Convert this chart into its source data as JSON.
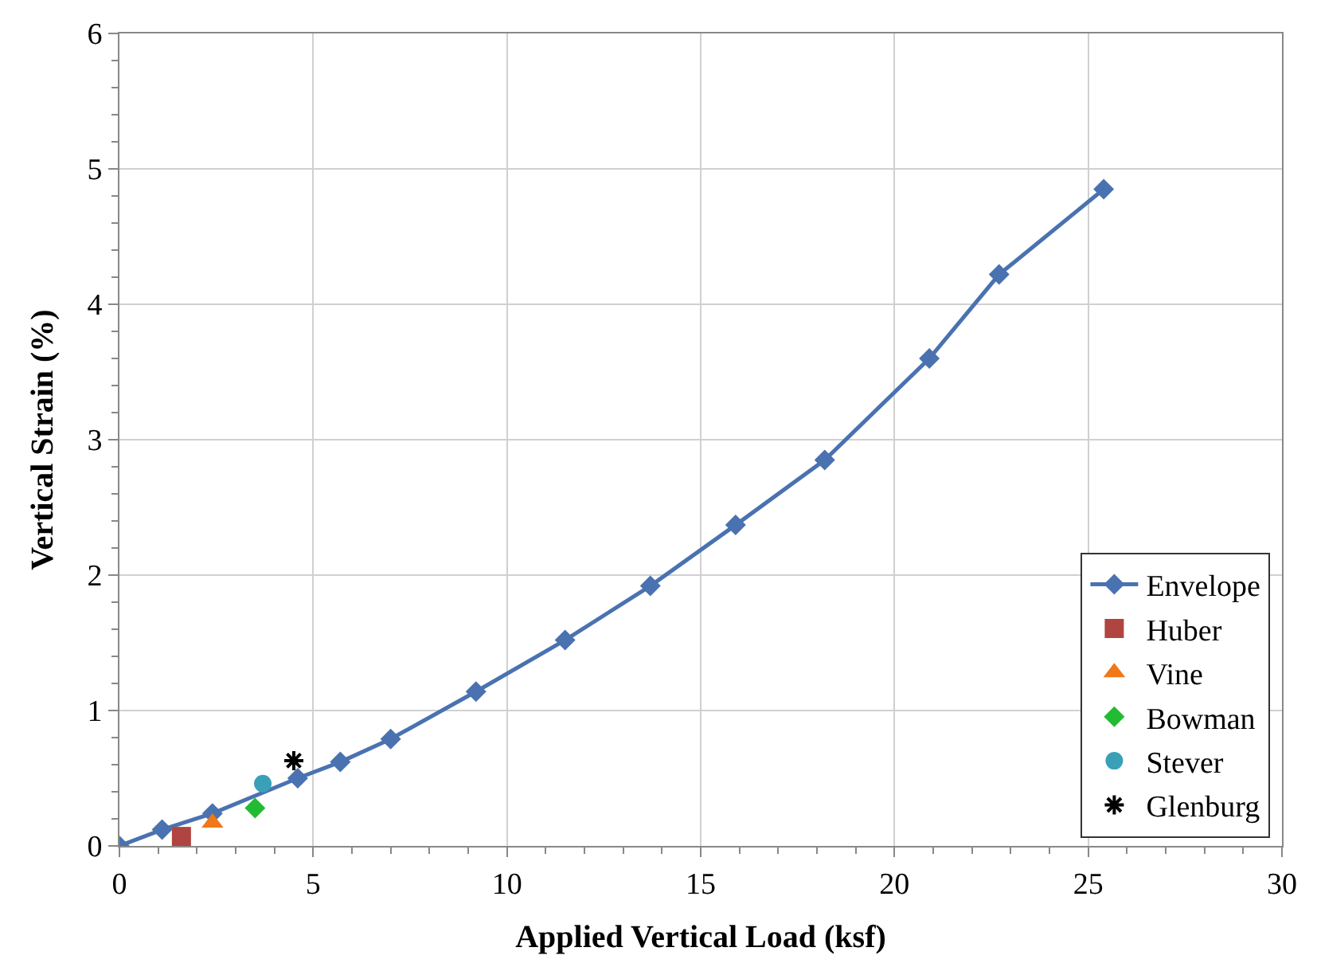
{
  "chart_data": {
    "type": "line",
    "xlabel": "Applied Vertical Load (ksf)",
    "ylabel": "Vertical Strain (%)",
    "xlim": [
      0,
      30
    ],
    "xticks": [
      0,
      5,
      10,
      15,
      20,
      25,
      30
    ],
    "ylim": [
      0,
      6
    ],
    "yticks": [
      0,
      1,
      2,
      3,
      4,
      5,
      6
    ],
    "grid": true,
    "legend": "bottom right",
    "series": [
      {
        "name": "Envelope",
        "color": "#4a72b0",
        "marker": "diamond",
        "line_style": "solid",
        "x": [
          0,
          1.1,
          2.4,
          4.6,
          5.7,
          7.0,
          9.2,
          11.5,
          13.7,
          15.9,
          18.2,
          20.9,
          22.7,
          25.4
        ],
        "values": [
          0,
          0.12,
          0.24,
          0.5,
          0.62,
          0.79,
          1.14,
          1.52,
          1.92,
          2.37,
          2.85,
          3.6,
          4.22,
          4.85
        ]
      },
      {
        "name": "Huber",
        "type": "scatter",
        "color": "#b04440",
        "marker": "square",
        "x": [
          1.6
        ],
        "values": [
          0.07
        ]
      },
      {
        "name": "Vine",
        "type": "scatter",
        "color": "#f07818",
        "marker": "triangle",
        "x": [
          2.4
        ],
        "values": [
          0.17
        ]
      },
      {
        "name": "Bowman",
        "type": "scatter",
        "color": "#22bb33",
        "marker": "diamond",
        "x": [
          3.5
        ],
        "values": [
          0.28
        ]
      },
      {
        "name": "Stever",
        "type": "scatter",
        "color": "#3aa0b8",
        "marker": "circle",
        "x": [
          3.7
        ],
        "values": [
          0.46
        ]
      },
      {
        "name": "Glenburg",
        "type": "scatter",
        "color": "#000000",
        "marker": "cross",
        "x": [
          4.5
        ],
        "values": [
          0.63
        ]
      }
    ]
  }
}
